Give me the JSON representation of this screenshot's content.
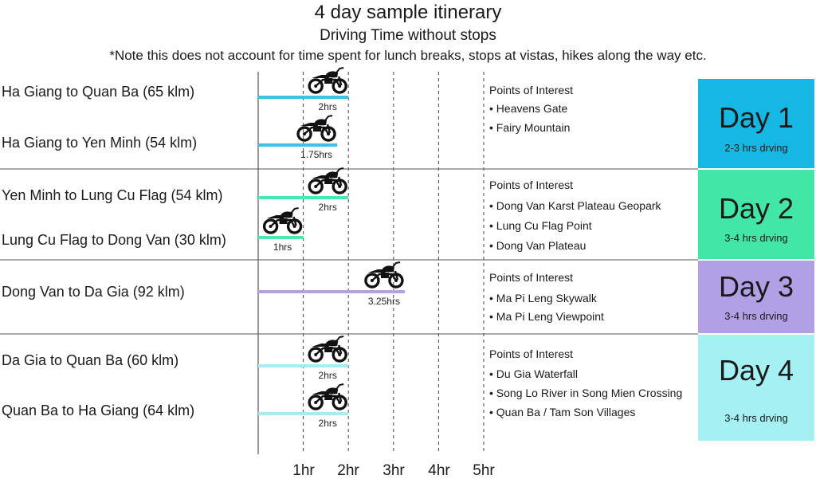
{
  "header": {
    "title": "4 day sample itinerary",
    "subtitle": "Driving Time without stops",
    "note": "*Note this does not account for time spent for lunch breaks, stops at vistas, hikes along the way etc."
  },
  "chart_data": {
    "type": "bar",
    "orientation": "horizontal",
    "xlim": [
      0,
      5
    ],
    "x_ticks": [
      "1hr",
      "2hr",
      "3hr",
      "4hr",
      "5hr"
    ],
    "grid": "dashed vertical lines at each hour",
    "routes": [
      {
        "label": "Ha Giang to Quan Ba (65 klm)",
        "hours": 2,
        "value_label": "2hrs",
        "color": "#3cc3e4"
      },
      {
        "label": "Ha Giang to Yen Minh (54 klm)",
        "hours": 1.75,
        "value_label": "1.75hrs",
        "color": "#3cc3e4"
      },
      {
        "label": "Yen Minh to Lung Cu Flag (54 klm)",
        "hours": 2,
        "value_label": "2hrs",
        "color": "#4fe6b0"
      },
      {
        "label": "Lung Cu Flag to Dong Van (30 klm)",
        "hours": 1,
        "value_label": "1hrs",
        "color": "#4fe6b0"
      },
      {
        "label": "Dong Van to Da Gia (92 klm)",
        "hours": 3.25,
        "value_label": "3.25hrs",
        "color": "#b3a1e6"
      },
      {
        "label": "Da Gia to Quan Ba (60 klm)",
        "hours": 2,
        "value_label": "2hrs",
        "color": "#a4ecef"
      },
      {
        "label": "Quan Ba to Ha Giang  (64 klm)",
        "hours": 2,
        "value_label": "2hrs",
        "color": "#a4ecef"
      }
    ]
  },
  "days": [
    {
      "title": "Day 1",
      "drive": "2-3 hrs drving",
      "color": "#16b7e2",
      "poi_heading": "Points of Interest",
      "poi": [
        "• Heavens Gate",
        "• Fairy Mountain"
      ]
    },
    {
      "title": "Day 2",
      "drive": "3-4 hrs drving",
      "color": "#42e6a6",
      "poi_heading": "Points of Interest",
      "poi": [
        "• Dong Van Karst Plateau Geopark",
        "• Lung Cu Flag Point",
        "• Dong Van Plateau"
      ]
    },
    {
      "title": "Day 3",
      "drive": "3-4 hrs drving",
      "color": "#b1a0e6",
      "poi_heading": "Points of Interest",
      "poi": [
        "• Ma Pi Leng Skywalk",
        "• Ma Pi Leng Viewpoint"
      ]
    },
    {
      "title": "Day 4",
      "drive": "3-4 hrs drving",
      "color": "#a5f0f3",
      "poi_heading": "Points of Interest",
      "poi": [
        "• Du Gia Waterfall",
        "• Song Lo River in Song Mien Crossing",
        "• Quan Ba / Tam Son Villages"
      ]
    }
  ],
  "icons": {
    "route_marker": "motorcycle-icon"
  }
}
